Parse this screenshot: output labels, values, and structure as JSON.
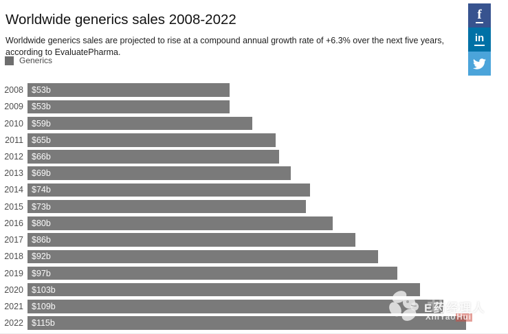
{
  "page": {
    "title": "Worldwide generics sales 2008-2022",
    "subtitle": "Worldwide generics sales are projected to rise at a compound annual growth rate of +6.3% over the next five years, according to EvaluatePharma."
  },
  "legend": {
    "label": "Generics",
    "swatch_color": "#6e6e6e"
  },
  "social": {
    "facebook_glyph": "f",
    "facebook_color": "#37538f",
    "linkedin_glyph": "in",
    "linkedin_color": "#0071a6",
    "twitter_color": "#4ba4da"
  },
  "chart_data": {
    "type": "bar",
    "orientation": "horizontal",
    "title": "Worldwide generics sales 2008-2022",
    "series_name": "Generics",
    "bar_color": "#7a7a7a",
    "categories": [
      "2008",
      "2009",
      "2010",
      "2011",
      "2012",
      "2013",
      "2014",
      "2015",
      "2016",
      "2017",
      "2018",
      "2019",
      "2020",
      "2021",
      "2022"
    ],
    "values": [
      53,
      53,
      59,
      65,
      66,
      69,
      74,
      73,
      80,
      86,
      92,
      97,
      103,
      109,
      115
    ],
    "value_labels": [
      "$53b",
      "$53b",
      "$59b",
      "$65b",
      "$66b",
      "$69b",
      "$74b",
      "$73b",
      "$80b",
      "$86b",
      "$92b",
      "$97b",
      "$103b",
      "$109b",
      "$115b"
    ],
    "xlim": [
      0,
      126
    ],
    "grid": false,
    "legend_position": "top-left",
    "value_label_position": "inside-start"
  },
  "watermark": {
    "brand": "E药经理人",
    "faint_text": "新药汇",
    "site_prefix": "XinYao",
    "site_highlight": "Hui",
    "site_suffix": ".com"
  }
}
